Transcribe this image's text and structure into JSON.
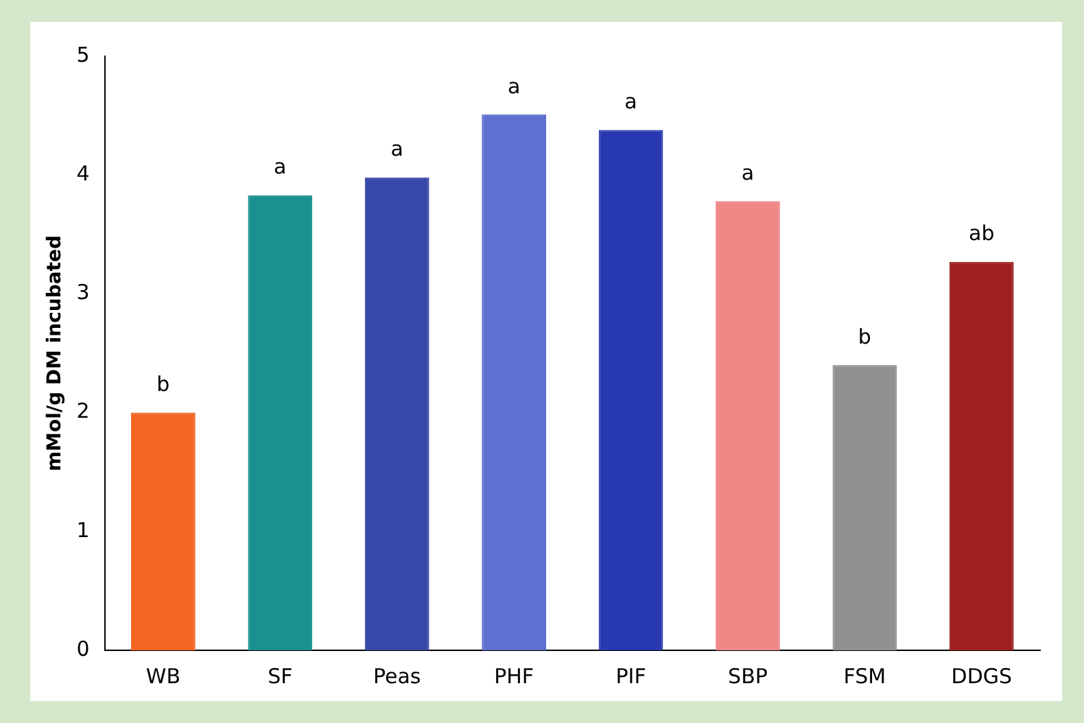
{
  "chart_data": {
    "type": "bar",
    "ylabel": "mMol/g DM incubated",
    "categories": [
      "WB",
      "SF",
      "Peas",
      "PHF",
      "PIF",
      "SBP",
      "FSM",
      "DDGS"
    ],
    "values": [
      2.0,
      3.83,
      3.98,
      4.51,
      4.38,
      3.78,
      2.4,
      3.27
    ],
    "colors": [
      "#f26522",
      "#1a9090",
      "#3848a8",
      "#6070d0",
      "#2838b0",
      "#f08888",
      "#909090",
      "#a02020"
    ],
    "ylim": [
      0,
      5
    ],
    "yticks": [
      0,
      1,
      2,
      3,
      4,
      5
    ],
    "grid": false,
    "annotations": [
      {
        "text": "b",
        "x": "WB",
        "y": 2.0
      },
      {
        "text": "a",
        "x": "SF",
        "y": 3.83
      },
      {
        "text": "a",
        "x": "Peas",
        "y": 3.98
      },
      {
        "text": "a",
        "x": "PHF",
        "y": 4.51
      },
      {
        "text": "a",
        "x": "PIF",
        "y": 4.38
      },
      {
        "text": "a",
        "x": "SBP",
        "y": 3.78
      },
      {
        "text": "b",
        "x": "FSM",
        "y": 2.4
      },
      {
        "text": "ab",
        "x": "DDGS",
        "y": 3.27
      }
    ]
  }
}
